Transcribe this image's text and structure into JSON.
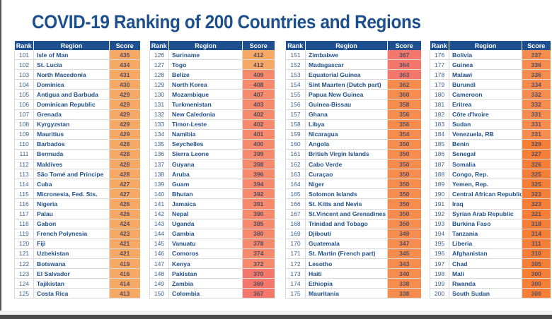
{
  "title": "COVID-19 Ranking of 200 Countries and Regions",
  "headers": {
    "rank": "Rank",
    "region": "Region",
    "score": "Score"
  },
  "colors": {
    "header_bg": "#1e4f8e",
    "title": "#1d4f8f",
    "score_light_orange": "#f6a865",
    "score_salmon": "#f58a6c",
    "score_coral": "#f3776b",
    "score_orange": "#f68d4f",
    "score_deep_orange": "#f57f36"
  },
  "chart_data": {
    "type": "table",
    "title": "COVID-19 Ranking of 200 Countries and Regions",
    "columns": [
      "Rank",
      "Region",
      "Score"
    ],
    "tables": [
      {
        "rows": [
          {
            "rank": 101,
            "region": "Isle of Man",
            "score": 435,
            "color": "score_light_orange"
          },
          {
            "rank": 102,
            "region": "St. Lucia",
            "score": 434,
            "color": "score_light_orange"
          },
          {
            "rank": 103,
            "region": "North Macedonia",
            "score": 431,
            "color": "score_light_orange"
          },
          {
            "rank": 104,
            "region": "Dominica",
            "score": 430,
            "color": "score_light_orange"
          },
          {
            "rank": 105,
            "region": "Antigua and Barbuda",
            "score": 429,
            "color": "score_light_orange"
          },
          {
            "rank": 106,
            "region": "Dominican Republic",
            "score": 429,
            "color": "score_light_orange"
          },
          {
            "rank": 107,
            "region": "Grenada",
            "score": 429,
            "color": "score_light_orange"
          },
          {
            "rank": 108,
            "region": "Kyrgyzstan",
            "score": 429,
            "color": "score_light_orange"
          },
          {
            "rank": 109,
            "region": "Mauritius",
            "score": 429,
            "color": "score_light_orange"
          },
          {
            "rank": 110,
            "region": "Barbados",
            "score": 428,
            "color": "score_light_orange"
          },
          {
            "rank": 111,
            "region": "Bermuda",
            "score": 428,
            "color": "score_light_orange"
          },
          {
            "rank": 112,
            "region": "Maldives",
            "score": 428,
            "color": "score_light_orange"
          },
          {
            "rank": 113,
            "region": "São Tomé and Principe",
            "score": 428,
            "color": "score_light_orange"
          },
          {
            "rank": 114,
            "region": "Cuba",
            "score": 427,
            "color": "score_light_orange"
          },
          {
            "rank": 115,
            "region": "Micronesia, Fed. Sts.",
            "score": 427,
            "color": "score_light_orange"
          },
          {
            "rank": 116,
            "region": "Nigeria",
            "score": 426,
            "color": "score_light_orange"
          },
          {
            "rank": 117,
            "region": "Palau",
            "score": 426,
            "color": "score_light_orange"
          },
          {
            "rank": 118,
            "region": "Gabon",
            "score": 424,
            "color": "score_light_orange"
          },
          {
            "rank": 119,
            "region": "French Polynesia",
            "score": 423,
            "color": "score_light_orange"
          },
          {
            "rank": 120,
            "region": "Fiji",
            "score": 421,
            "color": "score_light_orange"
          },
          {
            "rank": 121,
            "region": "Uzbekistan",
            "score": 421,
            "color": "score_light_orange"
          },
          {
            "rank": 122,
            "region": "Botswana",
            "score": 419,
            "color": "score_light_orange"
          },
          {
            "rank": 123,
            "region": "El Salvador",
            "score": 416,
            "color": "score_light_orange"
          },
          {
            "rank": 124,
            "region": "Tajikistan",
            "score": 414,
            "color": "score_light_orange"
          },
          {
            "rank": 125,
            "region": "Costa Rica",
            "score": 413,
            "color": "score_light_orange"
          }
        ]
      },
      {
        "rows": [
          {
            "rank": 126,
            "region": "Suriname",
            "score": 412,
            "color": "score_light_orange"
          },
          {
            "rank": 127,
            "region": "Togo",
            "score": 412,
            "color": "score_light_orange"
          },
          {
            "rank": 128,
            "region": "Belize",
            "score": 409,
            "color": "score_salmon"
          },
          {
            "rank": 129,
            "region": "North Korea",
            "score": 408,
            "color": "score_salmon"
          },
          {
            "rank": 130,
            "region": "Mozambique",
            "score": 407,
            "color": "score_salmon"
          },
          {
            "rank": 131,
            "region": "Turkmenistan",
            "score": 403,
            "color": "score_salmon"
          },
          {
            "rank": 132,
            "region": "New Caledonia",
            "score": 402,
            "color": "score_salmon"
          },
          {
            "rank": 133,
            "region": "Timor-Leste",
            "score": 402,
            "color": "score_salmon"
          },
          {
            "rank": 134,
            "region": "Namibia",
            "score": 401,
            "color": "score_salmon"
          },
          {
            "rank": 135,
            "region": "Seychelles",
            "score": 400,
            "color": "score_salmon"
          },
          {
            "rank": 136,
            "region": "Sierra Leone",
            "score": 399,
            "color": "score_salmon"
          },
          {
            "rank": 137,
            "region": "Guyana",
            "score": 398,
            "color": "score_salmon"
          },
          {
            "rank": 138,
            "region": "Aruba",
            "score": 396,
            "color": "score_salmon"
          },
          {
            "rank": 139,
            "region": "Guam",
            "score": 394,
            "color": "score_salmon"
          },
          {
            "rank": 140,
            "region": "Bhutan",
            "score": 392,
            "color": "score_salmon"
          },
          {
            "rank": 141,
            "region": "Jamaica",
            "score": 391,
            "color": "score_salmon"
          },
          {
            "rank": 142,
            "region": "Nepal",
            "score": 390,
            "color": "score_salmon"
          },
          {
            "rank": 143,
            "region": "Uganda",
            "score": 385,
            "color": "score_salmon"
          },
          {
            "rank": 144,
            "region": "Gambia",
            "score": 380,
            "color": "score_salmon"
          },
          {
            "rank": 145,
            "region": "Vanuatu",
            "score": 378,
            "color": "score_salmon"
          },
          {
            "rank": 146,
            "region": "Comoros",
            "score": 374,
            "color": "score_salmon"
          },
          {
            "rank": 147,
            "region": "Kenya",
            "score": 372,
            "color": "score_salmon"
          },
          {
            "rank": 148,
            "region": "Pakistan",
            "score": 370,
            "color": "score_coral"
          },
          {
            "rank": 149,
            "region": "Zambia",
            "score": 369,
            "color": "score_coral"
          },
          {
            "rank": 150,
            "region": "Colombia",
            "score": 367,
            "color": "score_coral"
          }
        ]
      },
      {
        "rows": [
          {
            "rank": 151,
            "region": "Zimbabwe",
            "score": 367,
            "color": "score_coral"
          },
          {
            "rank": 152,
            "region": "Madagascar",
            "score": 364,
            "color": "score_coral"
          },
          {
            "rank": 153,
            "region": "Equatorial Guinea",
            "score": 363,
            "color": "score_coral"
          },
          {
            "rank": 154,
            "region": "Sint Maarten (Dutch part)",
            "score": 362,
            "color": "score_orange"
          },
          {
            "rank": 155,
            "region": "Papua New Guinea",
            "score": 360,
            "color": "score_orange"
          },
          {
            "rank": 156,
            "region": "Guinea-Bissau",
            "score": 358,
            "color": "score_orange"
          },
          {
            "rank": 157,
            "region": "Ghana",
            "score": 356,
            "color": "score_orange"
          },
          {
            "rank": 158,
            "region": "Libya",
            "score": 356,
            "color": "score_orange"
          },
          {
            "rank": 159,
            "region": "Nicaragua",
            "score": 354,
            "color": "score_orange"
          },
          {
            "rank": 160,
            "region": "Angola",
            "score": 350,
            "color": "score_orange"
          },
          {
            "rank": 161,
            "region": "British Virgin Islands",
            "score": 350,
            "color": "score_orange"
          },
          {
            "rank": 162,
            "region": "Cabo Verde",
            "score": 350,
            "color": "score_orange"
          },
          {
            "rank": 163,
            "region": "Curaçao",
            "score": 350,
            "color": "score_orange"
          },
          {
            "rank": 164,
            "region": "Niger",
            "score": 350,
            "color": "score_orange"
          },
          {
            "rank": 165,
            "region": "Solomon Islands",
            "score": 350,
            "color": "score_orange"
          },
          {
            "rank": 166,
            "region": "St. Kitts and Nevis",
            "score": 350,
            "color": "score_orange"
          },
          {
            "rank": 167,
            "region": "St.Vincent and Grenadines",
            "score": 350,
            "color": "score_orange"
          },
          {
            "rank": 168,
            "region": "Trinidad and Tobago",
            "score": 350,
            "color": "score_orange"
          },
          {
            "rank": 169,
            "region": "Djibouti",
            "score": 349,
            "color": "score_orange"
          },
          {
            "rank": 170,
            "region": "Guatemala",
            "score": 347,
            "color": "score_orange"
          },
          {
            "rank": 171,
            "region": "St. Martin (French part)",
            "score": 345,
            "color": "score_orange"
          },
          {
            "rank": 172,
            "region": "Lesotho",
            "score": 343,
            "color": "score_orange"
          },
          {
            "rank": 173,
            "region": "Haiti",
            "score": 340,
            "color": "score_orange"
          },
          {
            "rank": 174,
            "region": "Ethiopia",
            "score": 338,
            "color": "score_orange"
          },
          {
            "rank": 175,
            "region": "Mauritania",
            "score": 338,
            "color": "score_orange"
          }
        ]
      },
      {
        "rows": [
          {
            "rank": 176,
            "region": "Bolivia",
            "score": 337,
            "color": "score_orange"
          },
          {
            "rank": 177,
            "region": "Guinea",
            "score": 336,
            "color": "score_orange"
          },
          {
            "rank": 178,
            "region": "Malawi",
            "score": 336,
            "color": "score_orange"
          },
          {
            "rank": 179,
            "region": "Burundi",
            "score": 334,
            "color": "score_orange"
          },
          {
            "rank": 180,
            "region": "Cameroon",
            "score": 332,
            "color": "score_orange"
          },
          {
            "rank": 181,
            "region": "Eritrea",
            "score": 332,
            "color": "score_orange"
          },
          {
            "rank": 182,
            "region": "Côte d'Ivoire",
            "score": 331,
            "color": "score_orange"
          },
          {
            "rank": 183,
            "region": "Sudan",
            "score": 331,
            "color": "score_orange"
          },
          {
            "rank": 184,
            "region": "Venezuela, RB",
            "score": 331,
            "color": "score_orange"
          },
          {
            "rank": 185,
            "region": "Benin",
            "score": 329,
            "color": "score_deep_orange"
          },
          {
            "rank": 186,
            "region": "Senegal",
            "score": 327,
            "color": "score_deep_orange"
          },
          {
            "rank": 187,
            "region": "Somalia",
            "score": 326,
            "color": "score_deep_orange"
          },
          {
            "rank": 188,
            "region": "Congo, Rep.",
            "score": 325,
            "color": "score_deep_orange"
          },
          {
            "rank": 189,
            "region": "Yemen, Rep.",
            "score": 325,
            "color": "score_deep_orange"
          },
          {
            "rank": 190,
            "region": "Central African Republic",
            "score": 323,
            "color": "score_deep_orange"
          },
          {
            "rank": 191,
            "region": "Iraq",
            "score": 323,
            "color": "score_deep_orange"
          },
          {
            "rank": 192,
            "region": "Syrian Arab Republic",
            "score": 321,
            "color": "score_deep_orange"
          },
          {
            "rank": 193,
            "region": "Burkina Faso",
            "score": 318,
            "color": "score_deep_orange"
          },
          {
            "rank": 194,
            "region": "Tanzania",
            "score": 314,
            "color": "score_deep_orange"
          },
          {
            "rank": 195,
            "region": "Liberia",
            "score": 311,
            "color": "score_deep_orange"
          },
          {
            "rank": 196,
            "region": "Afghanistan",
            "score": 310,
            "color": "score_deep_orange"
          },
          {
            "rank": 197,
            "region": "Chad",
            "score": 305,
            "color": "score_deep_orange"
          },
          {
            "rank": 198,
            "region": "Mali",
            "score": 300,
            "color": "score_deep_orange"
          },
          {
            "rank": 199,
            "region": "Rwanda",
            "score": 300,
            "color": "score_deep_orange"
          },
          {
            "rank": 200,
            "region": "South Sudan",
            "score": 300,
            "color": "score_deep_orange"
          }
        ]
      }
    ]
  }
}
